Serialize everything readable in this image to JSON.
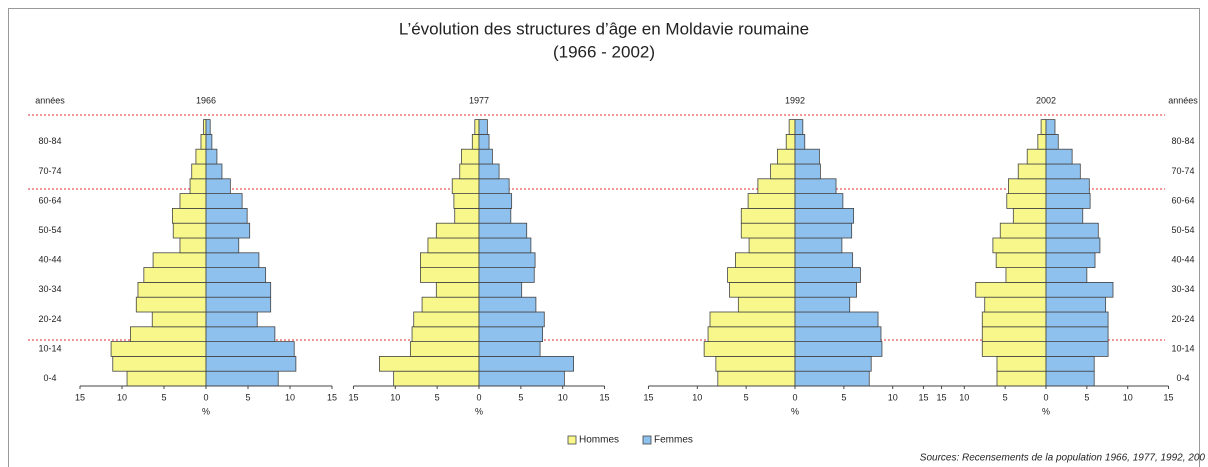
{
  "title": "L’évolution des structures d’âge en Moldavie roumaine",
  "subtitle": "(1966 - 2002)",
  "source": "Sources: Recensements de la population 1966, 1977, 1992, 200",
  "chart_data": [
    {
      "type": "pyramid",
      "title": "1966",
      "ylabel": "années",
      "xlabel": "%",
      "categories": [
        "0-4",
        null,
        "10-14",
        null,
        "20-24",
        null,
        "30-34",
        null,
        "40-44",
        null,
        "50-54",
        null,
        "60-64",
        null,
        "70-74",
        null,
        "80-84",
        null
      ],
      "xlim": [
        -15,
        15
      ],
      "xticks": [
        {
          "value": -15,
          "label": "15"
        },
        {
          "value": -10,
          "label": "10"
        },
        {
          "value": -5,
          "label": "5"
        },
        0,
        5,
        10,
        15
      ],
      "series": [
        {
          "name": "Hommes",
          "color": "#f7f78c",
          "values": [
            9.4,
            11.1,
            11.3,
            9.0,
            6.4,
            8.3,
            8.1,
            7.4,
            6.3,
            3.1,
            3.9,
            4.0,
            3.1,
            1.9,
            1.7,
            1.2,
            0.6,
            0.3
          ]
        },
        {
          "name": "Femmes",
          "color": "#8fc1ee",
          "values": [
            8.6,
            10.7,
            10.5,
            8.2,
            6.1,
            7.7,
            7.7,
            7.1,
            6.3,
            3.9,
            5.2,
            4.9,
            4.3,
            2.9,
            1.9,
            1.3,
            0.7,
            0.5
          ]
        }
      ]
    },
    {
      "type": "pyramid",
      "title": "1977",
      "xlabel": "%",
      "categories": [
        "0-4",
        null,
        "10-14",
        null,
        "20-24",
        null,
        "30-34",
        null,
        "40-44",
        null,
        "50-54",
        null,
        "60-64",
        null,
        "70-74",
        null,
        "80-84",
        null
      ],
      "xlim": [
        -15,
        15
      ],
      "xticks": [
        {
          "value": -15,
          "label": "15"
        },
        {
          "value": -10,
          "label": "10"
        },
        {
          "value": -5,
          "label": "5"
        },
        0,
        5,
        10,
        15
      ],
      "series": [
        {
          "name": "Hommes",
          "color": "#f7f78c",
          "values": [
            10.2,
            11.9,
            8.2,
            8.0,
            7.8,
            6.8,
            5.1,
            7.0,
            7.0,
            6.1,
            5.1,
            2.9,
            3.0,
            3.2,
            2.3,
            2.1,
            0.8,
            0.5
          ]
        },
        {
          "name": "Femmes",
          "color": "#8fc1ee",
          "values": [
            10.2,
            11.3,
            7.3,
            7.6,
            7.8,
            6.8,
            5.1,
            6.6,
            6.7,
            6.2,
            5.7,
            3.8,
            3.9,
            3.6,
            2.4,
            1.6,
            1.2,
            1.0
          ]
        }
      ]
    },
    {
      "type": "pyramid",
      "title": "1992",
      "xlabel": "%",
      "categories": [
        "0-4",
        null,
        "10-14",
        null,
        "20-24",
        null,
        "30-34",
        null,
        "40-44",
        null,
        "50-54",
        null,
        "60-64",
        null,
        "70-74",
        null,
        "80-84",
        null
      ],
      "xlim": [
        -15,
        15
      ],
      "xticks": [
        {
          "value": -15,
          "label": "15"
        },
        {
          "value": -10,
          "label": "10"
        },
        {
          "value": -5,
          "label": "5"
        },
        0,
        5,
        10,
        15
      ],
      "series": [
        {
          "name": "Hommes",
          "color": "#f7f78c",
          "values": [
            7.9,
            8.1,
            9.3,
            8.9,
            8.7,
            5.8,
            6.7,
            6.9,
            6.1,
            4.7,
            5.5,
            5.5,
            4.8,
            3.8,
            2.5,
            1.8,
            0.9,
            0.6
          ]
        },
        {
          "name": "Femmes",
          "color": "#8fc1ee",
          "values": [
            7.6,
            7.8,
            8.9,
            8.8,
            8.5,
            5.6,
            6.3,
            6.7,
            5.9,
            4.8,
            5.8,
            6.0,
            4.9,
            4.2,
            2.6,
            2.5,
            1.0,
            0.8
          ]
        }
      ]
    },
    {
      "type": "pyramid",
      "title": "2002",
      "ylabel": "années",
      "xlabel": "%",
      "categories": [
        "0-4",
        null,
        "10-14",
        null,
        "20-24",
        null,
        "30-34",
        null,
        "40-44",
        null,
        "50-54",
        null,
        "60-64",
        null,
        "70-74",
        null,
        "80-84",
        null
      ],
      "xlim": [
        -15,
        15
      ],
      "xticks": [
        {
          "value": -15,
          "label": "15"
        },
        {
          "value": -10,
          "label": "10"
        },
        {
          "value": -5,
          "label": "5"
        },
        0,
        5,
        10,
        15
      ],
      "series": [
        {
          "name": "Hommes",
          "color": "#f7f78c",
          "values": [
            6.0,
            6.0,
            7.8,
            7.8,
            7.8,
            7.5,
            8.6,
            4.9,
            6.1,
            6.5,
            5.6,
            4.0,
            4.8,
            4.6,
            3.4,
            2.3,
            1.0,
            0.6
          ]
        },
        {
          "name": "Femmes",
          "color": "#8fc1ee",
          "values": [
            5.9,
            5.9,
            7.6,
            7.6,
            7.6,
            7.3,
            8.2,
            5.0,
            6.0,
            6.6,
            6.4,
            4.5,
            5.4,
            5.3,
            4.2,
            3.2,
            1.5,
            1.1
          ]
        }
      ]
    }
  ]
}
